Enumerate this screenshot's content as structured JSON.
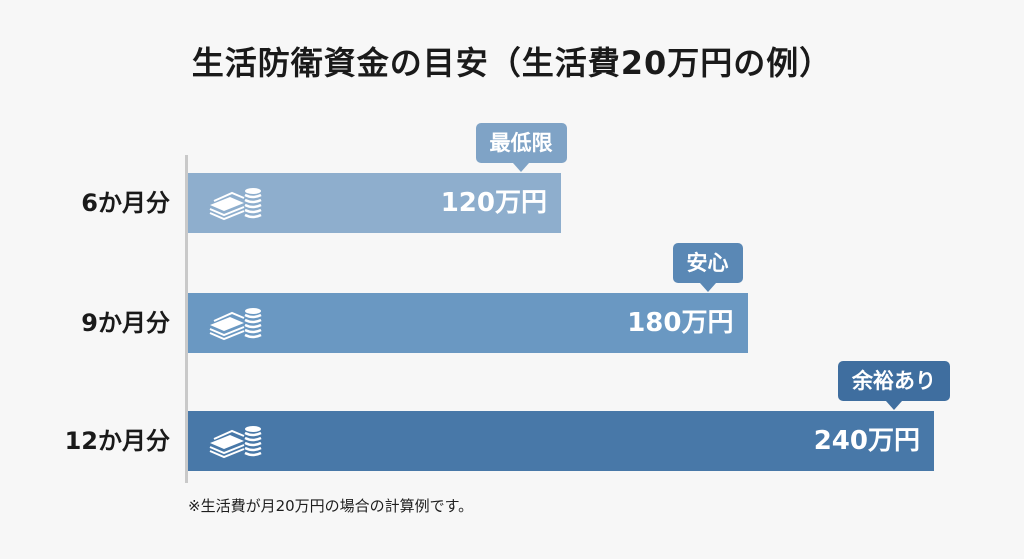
{
  "chart_data": {
    "type": "bar",
    "orientation": "horizontal",
    "title": "生活防衛資金の目安（生活費20万円の例）",
    "categories": [
      "6か月分",
      "9か月分",
      "12か月分"
    ],
    "values": [
      120,
      180,
      240
    ],
    "value_labels": [
      "120万円",
      "180万円",
      "240万円"
    ],
    "callouts": [
      "最低限",
      "安心",
      "余裕あり"
    ],
    "unit": "万円",
    "xlim": [
      0,
      240
    ],
    "footnote": "※生活費が月20万円の場合の計算例です。",
    "bar_colors": [
      "#8eaecd",
      "#6a98c2",
      "#4878a8"
    ],
    "callout_colors": [
      "#7fa3c6",
      "#5a88b5",
      "#3f6e9f"
    ],
    "icon": "money-stack-coins-icon"
  }
}
